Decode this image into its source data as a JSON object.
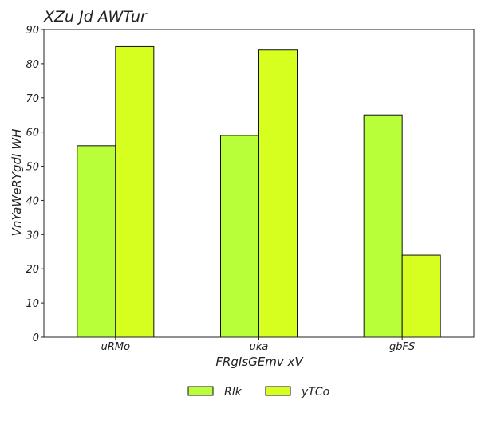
{
  "chart_data": {
    "type": "bar",
    "title": "XZu Jd  AWTur",
    "xlabel": "FRgIsGEmv xV",
    "ylabel": "VnYaWeRYgdI WH",
    "categories": [
      "uRMo",
      "uka",
      "gbFS"
    ],
    "series": [
      {
        "name": "Rlk",
        "values": [
          56,
          59,
          65
        ],
        "color": "#b8ff3a"
      },
      {
        "name": "yTCo",
        "values": [
          85,
          84,
          24
        ],
        "color": "#d6ff1f"
      }
    ],
    "ylim": [
      0,
      90
    ],
    "yticks": [
      0,
      10,
      20,
      30,
      40,
      50,
      60,
      70,
      80,
      90
    ],
    "grid": false,
    "legend_position": "bottom-center"
  }
}
